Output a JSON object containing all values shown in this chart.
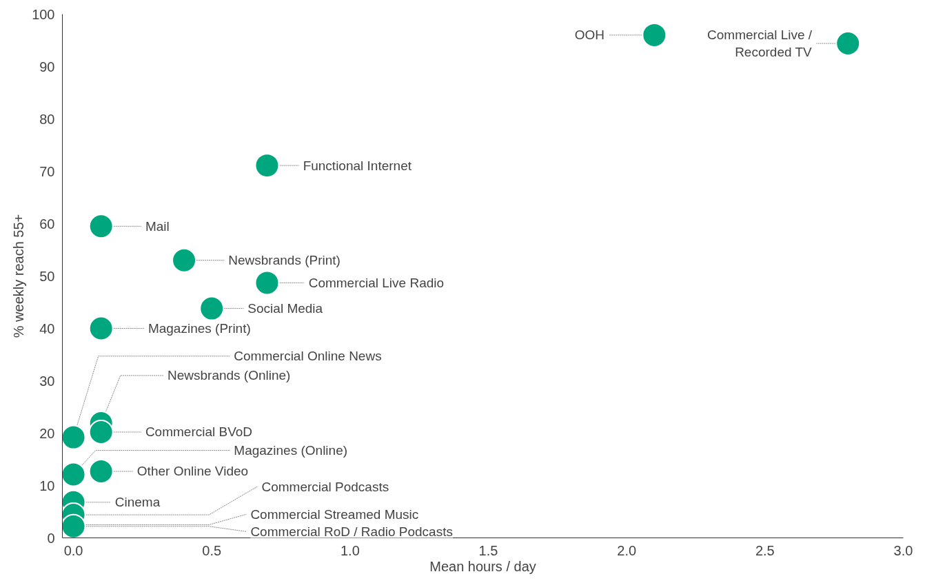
{
  "chart_data": {
    "type": "scatter",
    "xlabel": "Mean hours / day",
    "ylabel": "% weekly reach 55+",
    "xlim": [
      -0.04,
      3.0
    ],
    "ylim": [
      0,
      100
    ],
    "xticks": [
      {
        "value": 0,
        "label": "0.0"
      },
      {
        "value": 0.5,
        "label": "0.5"
      },
      {
        "value": 1,
        "label": "1.0"
      },
      {
        "value": 1.5,
        "label": "1.5"
      },
      {
        "value": 2,
        "label": "2.0"
      },
      {
        "value": 2.5,
        "label": "2.5"
      },
      {
        "value": 3,
        "label": "3.0"
      }
    ],
    "yticks": [
      0,
      10,
      20,
      30,
      40,
      50,
      60,
      70,
      80,
      90,
      100
    ],
    "grid": false,
    "marker": "circle",
    "series": [
      {
        "color": "#00a67e",
        "x": [
          2.1,
          2.8,
          0.7,
          0.1,
          0.4,
          0.7,
          0.5,
          0.1,
          0.0,
          0.1,
          0.1,
          0.0,
          0.1,
          0.0,
          0.0,
          null,
          0.0
        ],
        "values": [
          96,
          94.4,
          71.1,
          59.5,
          53,
          48.7,
          43.8,
          40,
          19.2,
          21.9,
          20.2,
          12.1,
          12.7,
          6.8,
          4.4,
          null,
          2.2
        ]
      }
    ],
    "annotations": [
      {
        "text": "OOH",
        "x": 2.1,
        "y": 96
      },
      {
        "text": "Commercial Live /\nRecorded TV",
        "x": 2.8,
        "y": 94.4
      },
      {
        "text": "Functional Internet",
        "x": 0.7,
        "y": 71.1
      },
      {
        "text": "Mail",
        "x": 0.1,
        "y": 59.5
      },
      {
        "text": "Newsbrands (Print)",
        "x": 0.4,
        "y": 53
      },
      {
        "text": "Commercial Live Radio",
        "x": 0.7,
        "y": 48.7
      },
      {
        "text": "Social Media",
        "x": 0.5,
        "y": 43.8
      },
      {
        "text": "Magazines (Print)",
        "x": 0.1,
        "y": 40
      },
      {
        "text": "Commercial Online News",
        "x": 0.0,
        "y": 19.2
      },
      {
        "text": "Newsbrands (Online)",
        "x": 0.1,
        "y": 21.9
      },
      {
        "text": "Commercial BVoD",
        "x": 0.1,
        "y": 20.2
      },
      {
        "text": "Magazines (Online)",
        "x": 0.0,
        "y": 12.1
      },
      {
        "text": "Other  Online Video",
        "x": 0.1,
        "y": 12.7
      },
      {
        "text": "Cinema",
        "x": 0.0,
        "y": 6.8
      },
      {
        "text": "Commercial Podcasts",
        "x": 0.0,
        "y": 4.4
      },
      {
        "text": "Commercial Streamed Music",
        "x": 0.0,
        "y": 2.5
      },
      {
        "text": "Commercial RoD / Radio Podcasts",
        "x": 0.0,
        "y": 2.2
      }
    ]
  }
}
